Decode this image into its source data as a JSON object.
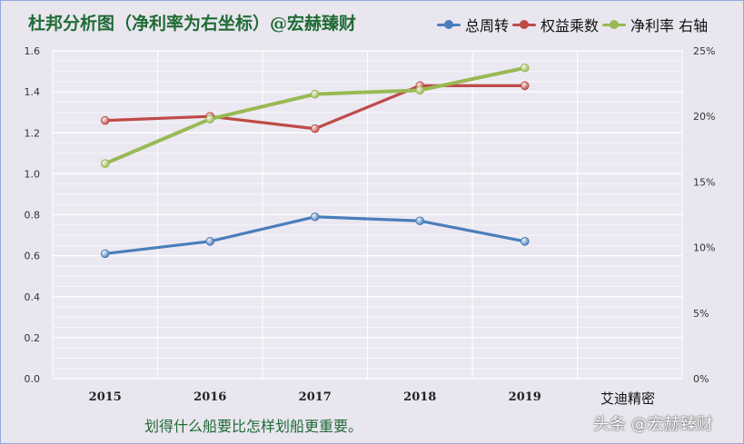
{
  "chart_data": {
    "type": "line",
    "title": "杜邦分析图（净利率为右坐标）@宏赫臻财",
    "categories": [
      "2015",
      "2016",
      "2017",
      "2018",
      "2019"
    ],
    "y_left": {
      "range": [
        0,
        1.6
      ],
      "ticks": [
        "0.0",
        "0.2",
        "0.4",
        "0.6",
        "0.8",
        "1.0",
        "1.2",
        "1.4",
        "1.6"
      ]
    },
    "y_right": {
      "range": [
        0,
        0.25
      ],
      "ticks": [
        "0%",
        "5%",
        "10%",
        "15%",
        "20%",
        "25%"
      ]
    },
    "series": [
      {
        "name": "总周转",
        "axis": "left",
        "color": "#4a7ebb",
        "values": [
          0.61,
          0.67,
          0.79,
          0.77,
          0.67
        ]
      },
      {
        "name": "权益乘数",
        "axis": "left",
        "color": "#be4b48",
        "values": [
          1.26,
          1.28,
          1.22,
          1.43,
          1.43
        ]
      },
      {
        "name": "净利率 右轴",
        "axis": "right",
        "color": "#98b954",
        "values": [
          0.164,
          0.198,
          0.217,
          0.22,
          0.237
        ]
      }
    ],
    "legend_position": "top-right",
    "grid": true
  },
  "footer_text": "划得什么船要比怎样划船更重要。",
  "extra_label": "艾迪精密",
  "watermark": "头条 @宏赫臻财"
}
